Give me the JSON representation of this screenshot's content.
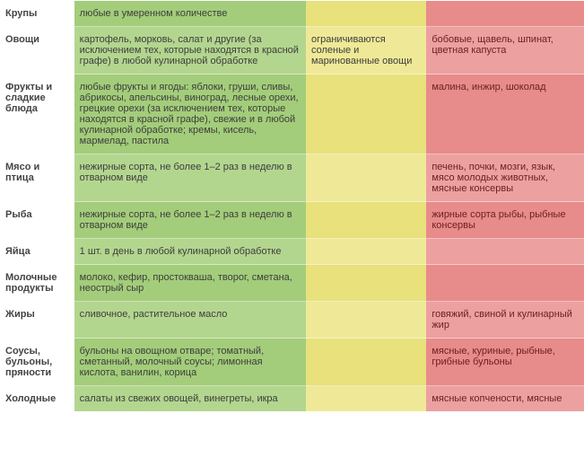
{
  "colors": {
    "green_even": "#a3cd7a",
    "green_odd": "#b3d68f",
    "yellow_even": "#e8e17c",
    "yellow_odd": "#efe997",
    "red_even": "#e88b8b",
    "red_odd": "#eda0a0",
    "cat_text": "#444444",
    "body_text": "#3d3d3d",
    "red_text": "#6b1f1f"
  },
  "rows": [
    {
      "cat": "Крупы",
      "green": "любые в умеренном количестве",
      "yellow": "",
      "red": ""
    },
    {
      "cat": "Овощи",
      "green": "картофель, морковь, салат и другие (за исключением тех, которые находятся в красной графе) в любой кулинарной обработке",
      "yellow": "ограничиваются соленые и маринованные овощи",
      "red": "бобовые, щавель, шпинат, цветная капуста"
    },
    {
      "cat": "Фрукты и сладкие блюда",
      "green": "любые фрукты и ягоды: яблоки, груши, сливы, абрикосы, апельсины, виноград, лесные орехи, грецкие орехи (за исключением тех, которые находятся в красной графе), свежие и в любой кулинарной обработке; кремы, кисель, мармелад, пастила",
      "yellow": "",
      "red": "малина, инжир, шоколад"
    },
    {
      "cat": "Мясо и птица",
      "green": "нежирные сорта, не более 1–2 раз в неделю в отварном виде",
      "yellow": "",
      "red": "печень, почки, мозги, язык, мясо молодых животных, мясные консервы"
    },
    {
      "cat": "Рыба",
      "green": "нежирные сорта, не более 1–2 раз в неделю в отварном виде",
      "yellow": "",
      "red": "жирные сорта рыбы, рыбные консервы"
    },
    {
      "cat": "Яйца",
      "green": "1 шт. в день в любой кулинарной обработке",
      "yellow": "",
      "red": ""
    },
    {
      "cat": "Молочные продукты",
      "green": "молоко, кефир, простокваша, творог, сметана, неострый сыр",
      "yellow": "",
      "red": ""
    },
    {
      "cat": "Жиры",
      "green": "сливочное, растительное масло",
      "yellow": "",
      "red": "говяжий, свиной и кулинарный жир"
    },
    {
      "cat": "Соусы, бульоны, пряности",
      "green": "бульоны на овощном отваре; томатный, сметанный, молочный соусы; лимонная кислота, ванилин, корица",
      "yellow": "",
      "red": "мясные, куриные, рыбные, грибные бульоны"
    },
    {
      "cat": "Холодные",
      "green": "салаты из свежих овощей, винегреты, икра",
      "yellow": "",
      "red": "мясные копчености, мясные"
    }
  ]
}
